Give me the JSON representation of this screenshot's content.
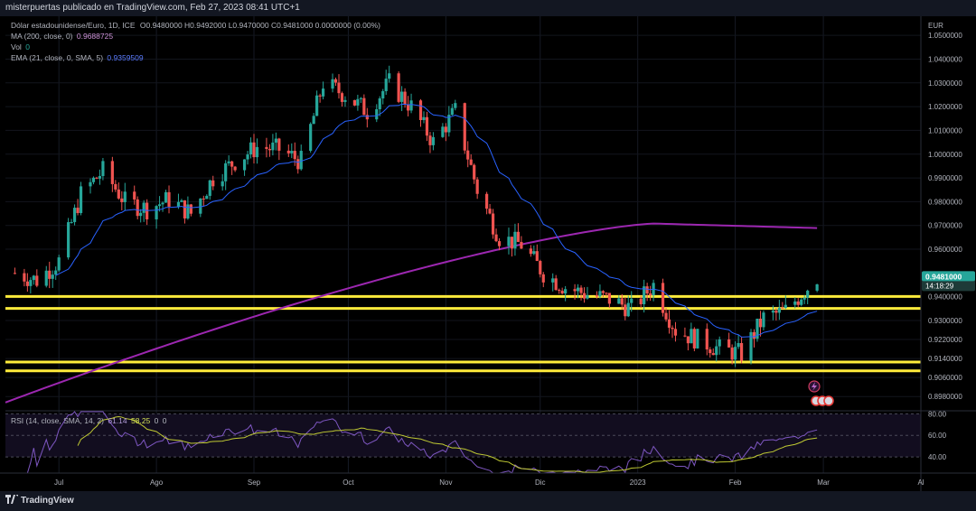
{
  "header": {
    "publisher_line": "misterpuertas publicado en TradingView.com, Feb 27, 2023 08:41 UTC+1"
  },
  "legend": {
    "symbol": "Dólar estadounidense/Euro, 1D, ICE",
    "ohlc": "O0.9480000  H0.9492000  L0.9470000  C0.9481000  0.0000000 (0.00%)",
    "ma_label": "MA (200, close, 0)",
    "ma_value": "0.9688725",
    "vol_label": "Vol",
    "vol_value": "0",
    "ema_label": "EMA (21, close, 0, SMA, 5)",
    "ema_value": "0.9359509",
    "rsi_label": "RSI (14, close, SMA, 14, 2)",
    "rsi_value1": "61.14",
    "rsi_value2": "58.25",
    "rsi_value3": "0",
    "rsi_value4": "0"
  },
  "price_tag": {
    "price": "0.9481000",
    "countdown": "14:18:29"
  },
  "branding": {
    "logo_text": "TradingView"
  },
  "colors": {
    "up": "#26a69a",
    "down": "#ef5350",
    "ma": "#9c27b0",
    "ema": "#2962ff",
    "level": "#ffeb3b",
    "rsi": "#7e57c2",
    "rsi_ma": "#c0ca33"
  },
  "chart_data": [
    {
      "type": "candlestick",
      "currency": "EUR",
      "y_ticks": [
        "1.0500000",
        "1.0400000",
        "1.0300000",
        "1.0200000",
        "1.0100000",
        "1.0000000",
        "0.9900000",
        "0.9800000",
        "0.9700000",
        "0.9600000",
        "0.9400000",
        "0.9300000",
        "0.9220000",
        "0.9140000",
        "0.9060000",
        "0.8980000"
      ],
      "x_ticks": [
        "Jul",
        "Ago",
        "Sep",
        "Oct",
        "Nov",
        "Dic",
        "2023",
        "Feb",
        "Mar",
        "Al"
      ],
      "ylim": [
        0.892,
        1.055
      ],
      "horizontal_levels": [
        0.9401,
        0.9351,
        0.9125,
        0.9088
      ],
      "price_path": [
        [
          "2022-06-17",
          0.95
        ],
        [
          "2022-06-24",
          0.947
        ],
        [
          "2022-07-01",
          0.955
        ],
        [
          "2022-07-08",
          0.983
        ],
        [
          "2022-07-15",
          0.993
        ],
        [
          "2022-07-22",
          0.98
        ],
        [
          "2022-07-29",
          0.977
        ],
        [
          "2022-08-05",
          0.981
        ],
        [
          "2022-08-12",
          0.975
        ],
        [
          "2022-08-19",
          0.99
        ],
        [
          "2022-08-26",
          0.997
        ],
        [
          "2022-09-02",
          1.003
        ],
        [
          "2022-09-09",
          1.002
        ],
        [
          "2022-09-16",
          0.997
        ],
        [
          "2022-09-23",
          1.03
        ],
        [
          "2022-09-30",
          1.025
        ],
        [
          "2022-10-07",
          1.018
        ],
        [
          "2022-10-14",
          1.03
        ],
        [
          "2022-10-21",
          1.02
        ],
        [
          "2022-10-28",
          1.005
        ],
        [
          "2022-11-04",
          1.018
        ],
        [
          "2022-11-11",
          0.985
        ],
        [
          "2022-11-18",
          0.965
        ],
        [
          "2022-11-25",
          0.962
        ],
        [
          "2022-12-02",
          0.95
        ],
        [
          "2022-12-09",
          0.944
        ],
        [
          "2022-12-16",
          0.941
        ],
        [
          "2022-12-23",
          0.939
        ],
        [
          "2022-12-30",
          0.935
        ],
        [
          "2023-01-06",
          0.945
        ],
        [
          "2023-01-13",
          0.926
        ],
        [
          "2023-01-20",
          0.922
        ],
        [
          "2023-01-27",
          0.918
        ],
        [
          "2023-02-03",
          0.916
        ],
        [
          "2023-02-10",
          0.931
        ],
        [
          "2023-02-17",
          0.934
        ],
        [
          "2023-02-24",
          0.944
        ],
        [
          "2023-02-27",
          0.9481
        ]
      ],
      "series": [
        {
          "name": "MA (200, close, 0)",
          "last_value": 0.9688725
        },
        {
          "name": "EMA (21, close, 0, SMA, 5)",
          "last_value": 0.9359509
        }
      ]
    },
    {
      "type": "line",
      "title": "RSI (14, close, SMA, 14, 2)",
      "y_ticks": [
        "80.00",
        "60.00",
        "40.00"
      ],
      "ylim": [
        25,
        82
      ],
      "rsi_last": 61.14,
      "rsi_ma_last": 58.25
    }
  ]
}
